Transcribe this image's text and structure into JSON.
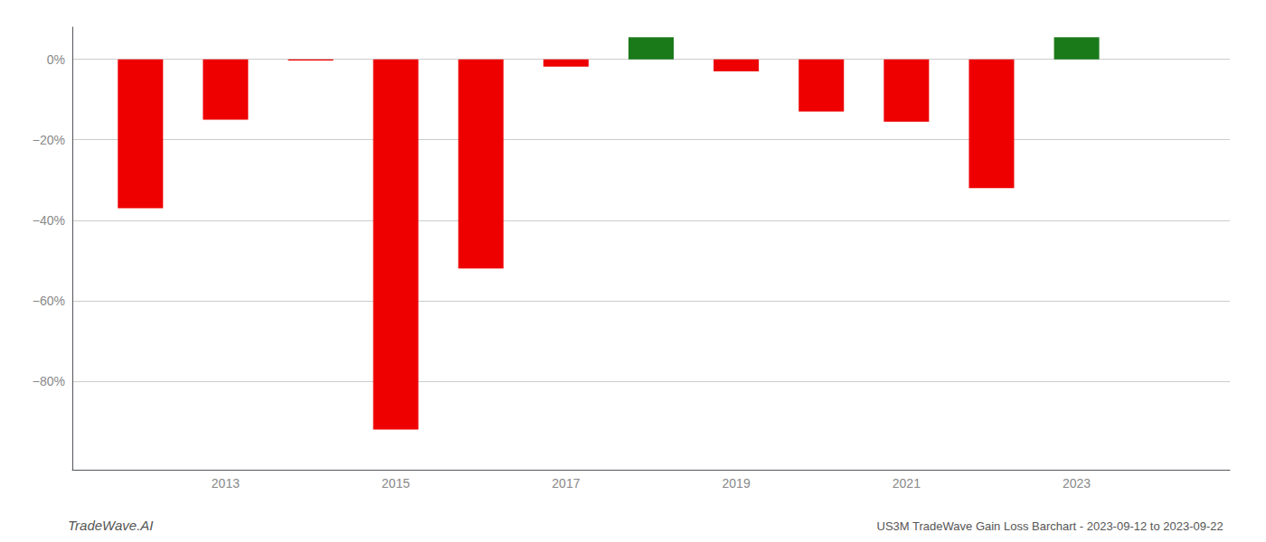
{
  "chart_data": {
    "type": "bar",
    "title": "US3M TradeWave Gain Loss Barchart - 2023-09-12 to 2023-09-22",
    "annotations": [
      "TradeWave.AI"
    ],
    "x": [
      2012,
      2013,
      2014,
      2015,
      2016,
      2017,
      2018,
      2019,
      2020,
      2021,
      2022,
      2023
    ],
    "values": [
      -0.37,
      -0.15,
      -0.003,
      -0.92,
      -0.52,
      -0.018,
      0.055,
      -0.03,
      -0.13,
      -0.155,
      -0.32,
      0.055
    ],
    "colors": [
      "#ee0000",
      "#ee0000",
      "#ee0000",
      "#ee0000",
      "#ee0000",
      "#ee0000",
      "#1a7a1a",
      "#ee0000",
      "#ee0000",
      "#ee0000",
      "#ee0000",
      "#1a7a1a"
    ],
    "xlim": [
      2011.2,
      2024.8
    ],
    "xticks": [
      2013,
      2015,
      2017,
      2019,
      2021,
      2023
    ],
    "ylim": [
      -1.02,
      0.08
    ],
    "yticks": [
      {
        "value": 0.0,
        "label": "0%"
      },
      {
        "value": -0.2,
        "label": "−20%"
      },
      {
        "value": -0.4,
        "label": "−40%"
      },
      {
        "value": -0.6,
        "label": "−60%"
      },
      {
        "value": -0.8,
        "label": "−80%"
      }
    ],
    "grid": true
  }
}
